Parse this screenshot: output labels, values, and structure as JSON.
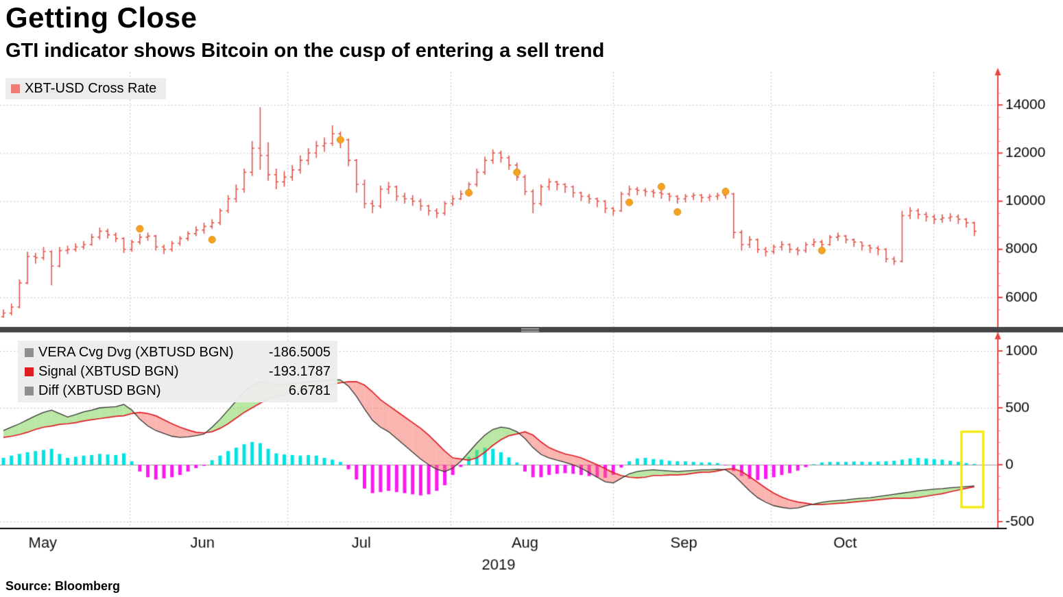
{
  "title": "Getting Close",
  "subtitle": "GTI indicator shows Bitcoin on the cusp of entering a sell trend",
  "source": "Source:  Bloomberg",
  "legend_top": {
    "label": "XBT-USD Cross Rate",
    "swatch_color": "#ee7b76"
  },
  "legend_bottom": {
    "rows": [
      {
        "label": "VERA Cvg Dvg (XBTUSD BGN)",
        "value": "-186.5005",
        "swatch_color": "#8f8f8f"
      },
      {
        "label": "Signal (XBTUSD BGN)",
        "value": "-193.1787",
        "swatch_color": "#e11b22"
      },
      {
        "label": "Diff (XBTUSD BGN)",
        "value": "6.6781",
        "swatch_color": "#8f8f8f"
      }
    ]
  },
  "chart_data": {
    "type": "mixed",
    "x_axis": {
      "month_labels": [
        "May",
        "Jun",
        "Jul",
        "Aug",
        "Sep",
        "Oct"
      ],
      "label_centers_i": [
        4.9,
        24.8,
        44.6,
        65.0,
        84.8,
        104.9
      ],
      "month_boundaries_i": [
        15.7,
        35.4,
        55.7,
        76.0,
        95.6,
        115.9
      ],
      "year_label": "2019",
      "year_center_i": 61.7
    },
    "panels": [
      {
        "name": "price",
        "type": "ohlc",
        "series_name": "XBT-USD Cross Rate",
        "ylim": [
          5000,
          15000
        ],
        "yticks": [
          6000,
          8000,
          10000,
          12000,
          14000
        ],
        "bar_color": "#e4534b",
        "dot_color": "#f6a323",
        "bars": [
          [
            5500,
            5150,
            5350
          ],
          [
            5750,
            5250,
            5600
          ],
          [
            6750,
            5550,
            6600
          ],
          [
            7900,
            6550,
            7700
          ],
          [
            7850,
            7400,
            7650
          ],
          [
            8100,
            7550,
            7900
          ],
          [
            7950,
            6500,
            7300
          ],
          [
            8100,
            7250,
            7950
          ],
          [
            8150,
            7800,
            8000
          ],
          [
            8250,
            7900,
            8100
          ],
          [
            8350,
            8000,
            8200
          ],
          [
            8650,
            8150,
            8500
          ],
          [
            8900,
            8400,
            8750
          ],
          [
            8850,
            8450,
            8600
          ],
          [
            8700,
            8300,
            8450
          ],
          [
            8500,
            7850,
            8000
          ],
          [
            8400,
            7900,
            8300
          ],
          [
            8650,
            8200,
            8500
          ],
          [
            8700,
            8350,
            8550
          ],
          [
            8600,
            7950,
            8100
          ],
          [
            8200,
            7800,
            8000
          ],
          [
            8350,
            7900,
            8250
          ],
          [
            8550,
            8150,
            8450
          ],
          [
            8750,
            8350,
            8650
          ],
          [
            8950,
            8550,
            8800
          ],
          [
            9100,
            8650,
            8950
          ],
          [
            9250,
            8850,
            9100
          ],
          [
            9700,
            9000,
            9600
          ],
          [
            10250,
            9500,
            10100
          ],
          [
            10700,
            9950,
            10500
          ],
          [
            11350,
            10350,
            11200
          ],
          [
            12500,
            11050,
            12200
          ],
          [
            13900,
            11300,
            11900
          ],
          [
            12450,
            10850,
            11100
          ],
          [
            11350,
            10500,
            10800
          ],
          [
            11250,
            10600,
            11000
          ],
          [
            11500,
            10850,
            11300
          ],
          [
            11900,
            11150,
            11700
          ],
          [
            12200,
            11500,
            12000
          ],
          [
            12500,
            11800,
            12300
          ],
          [
            12650,
            12050,
            12400
          ],
          [
            13150,
            12300,
            12800
          ],
          [
            12900,
            12200,
            12550
          ],
          [
            12600,
            11450,
            11700
          ],
          [
            11750,
            10350,
            10700
          ],
          [
            10900,
            9700,
            9900
          ],
          [
            10050,
            9500,
            9800
          ],
          [
            10650,
            9700,
            10500
          ],
          [
            10800,
            10300,
            10600
          ],
          [
            10650,
            10000,
            10200
          ],
          [
            10350,
            9900,
            10100
          ],
          [
            10250,
            9800,
            10000
          ],
          [
            10100,
            9600,
            9800
          ],
          [
            9850,
            9400,
            9600
          ],
          [
            9700,
            9300,
            9500
          ],
          [
            10000,
            9400,
            9900
          ],
          [
            10250,
            9800,
            10100
          ],
          [
            10450,
            10050,
            10300
          ],
          [
            10800,
            10200,
            10700
          ],
          [
            11350,
            10600,
            11200
          ],
          [
            11850,
            11100,
            11700
          ],
          [
            12150,
            11550,
            12000
          ],
          [
            12100,
            11600,
            11800
          ],
          [
            11900,
            11300,
            11500
          ],
          [
            11600,
            10850,
            11000
          ],
          [
            11100,
            10250,
            10400
          ],
          [
            10500,
            9500,
            9900
          ],
          [
            10700,
            9800,
            10600
          ],
          [
            10950,
            10450,
            10800
          ],
          [
            10850,
            10450,
            10700
          ],
          [
            10750,
            10350,
            10600
          ],
          [
            10650,
            10150,
            10350
          ],
          [
            10400,
            10000,
            10200
          ],
          [
            10300,
            9900,
            10100
          ],
          [
            10150,
            9750,
            10000
          ],
          [
            10050,
            9500,
            9700
          ],
          [
            9750,
            9400,
            9600
          ],
          [
            10400,
            9550,
            10300
          ],
          [
            10650,
            10200,
            10500
          ],
          [
            10600,
            10250,
            10450
          ],
          [
            10550,
            10200,
            10400
          ],
          [
            10500,
            10150,
            10350
          ],
          [
            10450,
            10100,
            10300
          ],
          [
            10350,
            10000,
            10200
          ],
          [
            10250,
            9900,
            10100
          ],
          [
            10300,
            9950,
            10200
          ],
          [
            10350,
            10050,
            10250
          ],
          [
            10300,
            9950,
            10150
          ],
          [
            10300,
            10000,
            10200
          ],
          [
            10350,
            10050,
            10250
          ],
          [
            10400,
            10100,
            10300
          ],
          [
            10350,
            8450,
            8700
          ],
          [
            8800,
            7950,
            8200
          ],
          [
            8550,
            8050,
            8400
          ],
          [
            8450,
            7850,
            8000
          ],
          [
            8100,
            7700,
            7900
          ],
          [
            8200,
            7800,
            8100
          ],
          [
            8350,
            7950,
            8200
          ],
          [
            8250,
            7850,
            8000
          ],
          [
            8100,
            7750,
            7950
          ],
          [
            8300,
            7850,
            8200
          ],
          [
            8450,
            8100,
            8300
          ],
          [
            8400,
            8000,
            8200
          ],
          [
            8600,
            8150,
            8500
          ],
          [
            8700,
            8350,
            8550
          ],
          [
            8600,
            8250,
            8400
          ],
          [
            8450,
            8100,
            8300
          ],
          [
            8300,
            7950,
            8150
          ],
          [
            8200,
            7850,
            8050
          ],
          [
            8150,
            7750,
            8000
          ],
          [
            8050,
            7450,
            7600
          ],
          [
            7700,
            7350,
            7500
          ],
          [
            9600,
            7450,
            9400
          ],
          [
            9750,
            9250,
            9600
          ],
          [
            9700,
            9250,
            9450
          ],
          [
            9550,
            9150,
            9350
          ],
          [
            9450,
            9050,
            9250
          ],
          [
            9450,
            9100,
            9300
          ],
          [
            9500,
            9150,
            9350
          ],
          [
            9450,
            9050,
            9250
          ],
          [
            9300,
            8900,
            9100
          ],
          [
            9150,
            8550,
            8750
          ]
        ],
        "signal_dots": [
          {
            "i": 17,
            "price": 8850
          },
          {
            "i": 26,
            "price": 8400
          },
          {
            "i": 42,
            "price": 12550
          },
          {
            "i": 58,
            "price": 10350
          },
          {
            "i": 64,
            "price": 11200
          },
          {
            "i": 78,
            "price": 9950
          },
          {
            "i": 82,
            "price": 10600
          },
          {
            "i": 84,
            "price": 9550
          },
          {
            "i": 90,
            "price": 10400
          },
          {
            "i": 102,
            "price": 7950
          }
        ]
      },
      {
        "name": "gti",
        "type": "macd",
        "ylim": [
          -600,
          1100
        ],
        "yticks": [
          -500,
          0,
          500,
          1000
        ],
        "vera_color": "#333333",
        "signal_color": "#e11b22",
        "hist_pos_color": "#00e3e3",
        "hist_neg_color": "#fb19f0",
        "fill_up_color": "rgba(130,214,90,0.55)",
        "fill_down_color": "rgba(247,108,100,0.5)",
        "vera": [
          300,
          330,
          360,
          395,
          430,
          460,
          480,
          450,
          420,
          440,
          465,
          480,
          500,
          505,
          510,
          530,
          480,
          400,
          340,
          300,
          275,
          250,
          240,
          245,
          255,
          270,
          330,
          400,
          480,
          560,
          640,
          700,
          730,
          720,
          700,
          705,
          715,
          720,
          730,
          735,
          740,
          750,
          745,
          690,
          600,
          490,
          390,
          330,
          290,
          230,
          170,
          110,
          50,
          0,
          -40,
          -60,
          -30,
          30,
          110,
          190,
          260,
          310,
          330,
          320,
          290,
          230,
          150,
          90,
          60,
          40,
          20,
          0,
          -30,
          -70,
          -110,
          -150,
          -160,
          -120,
          -80,
          -60,
          -50,
          -45,
          -50,
          -55,
          -60,
          -55,
          -50,
          -45,
          -45,
          -40,
          -45,
          -90,
          -160,
          -230,
          -290,
          -330,
          -360,
          -375,
          -385,
          -380,
          -360,
          -345,
          -330,
          -320,
          -315,
          -310,
          -300,
          -295,
          -290,
          -280,
          -270,
          -260,
          -250,
          -240,
          -228,
          -222,
          -215,
          -210,
          -203,
          -198,
          -192,
          -186.5
        ],
        "diff": [
          60,
          80,
          95,
          110,
          120,
          130,
          140,
          95,
          60,
          70,
          80,
          85,
          95,
          90,
          85,
          100,
          30,
          -60,
          -110,
          -130,
          -120,
          -110,
          -90,
          -60,
          -30,
          -10,
          40,
          80,
          120,
          150,
          180,
          200,
          190,
          140,
          100,
          90,
          85,
          80,
          85,
          80,
          60,
          45,
          25,
          -40,
          -130,
          -210,
          -250,
          -240,
          -230,
          -240,
          -250,
          -260,
          -270,
          -260,
          -230,
          -180,
          -90,
          -20,
          70,
          130,
          150,
          140,
          110,
          65,
          20,
          -60,
          -110,
          -110,
          -90,
          -80,
          -75,
          -80,
          -90,
          -100,
          -110,
          -115,
          -90,
          -25,
          30,
          55,
          60,
          50,
          45,
          35,
          30,
          30,
          25,
          20,
          20,
          15,
          -5,
          -55,
          -100,
          -125,
          -135,
          -125,
          -110,
          -90,
          -75,
          -52,
          -22,
          5,
          20,
          25,
          25,
          25,
          28,
          27,
          25,
          28,
          30,
          35,
          45,
          55,
          60,
          55,
          50,
          45,
          35,
          25,
          15,
          7
        ],
        "last_values": {
          "vera": -186.5005,
          "signal": -193.1787,
          "diff": 6.6781
        },
        "highlight_box": {
          "start_i": 119.4,
          "end_i": 122.1,
          "v_top": 290,
          "v_bottom": -373,
          "color": "#f2ea1a"
        }
      }
    ]
  }
}
